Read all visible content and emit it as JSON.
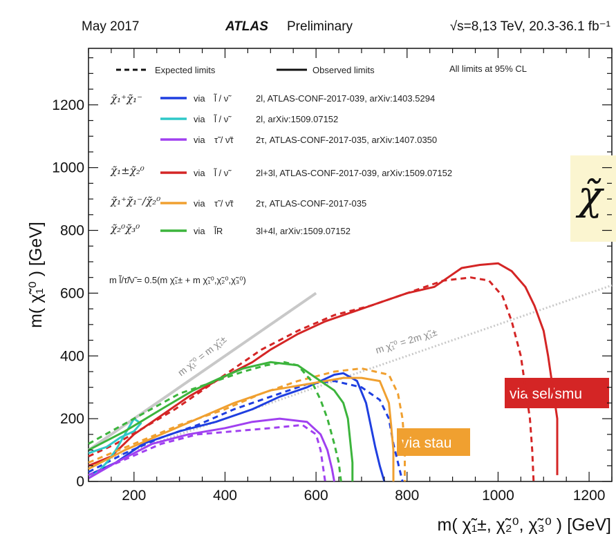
{
  "header": {
    "date": "May 2017",
    "experiment": "ATLAS",
    "status": "Preliminary",
    "energy": "√s=8,13 TeV, 20.3-36.1 fb⁻¹"
  },
  "colors": {
    "blue": "#1f3fe0",
    "cyan": "#2fc8c8",
    "purple": "#a040f0",
    "red": "#d42525",
    "orange": "#f0a030",
    "green": "#3cb43c",
    "diag": "#c8c8c8"
  },
  "legend": {
    "style_expected": "Expected limits",
    "style_observed": "Observed limits",
    "cl_note": "All limits at 95% CL",
    "groups": [
      {
        "label": "χ̃₁⁺χ̃₁⁻"
      },
      {
        "label": "χ̃₁±χ̃₂⁰"
      },
      {
        "label": "χ̃₁⁺χ̃₁⁻/χ̃₂⁰"
      },
      {
        "label": "χ̃₂⁰χ̃₃⁰"
      }
    ],
    "entries": [
      {
        "via": "via",
        "particle": "l̃ / ν̃",
        "text": "2l, ATLAS-CONF-2017-039, arXiv:1403.5294",
        "color": "#1f3fe0"
      },
      {
        "via": "via",
        "particle": "l̃ / ν̃",
        "text": "2l, arXiv:1509.07152",
        "color": "#2fc8c8"
      },
      {
        "via": "via",
        "particle": "τ̃ / ν̃τ",
        "text": "2τ, ATLAS-CONF-2017-035, arXiv:1407.0350",
        "color": "#a040f0"
      },
      {
        "via": "via",
        "particle": "l̃ / ν̃",
        "text": "2l+3l, ATLAS-CONF-2017-039, arXiv:1509.07152",
        "color": "#d42525"
      },
      {
        "via": "via",
        "particle": "τ̃ / ν̃τ",
        "text": "2τ, ATLAS-CONF-2017-035",
        "color": "#f0a030"
      },
      {
        "via": "via",
        "particle": "l̃R",
        "text": "3l+4l, arXiv:1509.07152",
        "color": "#3cb43c"
      }
    ]
  },
  "annotations": {
    "mass_relation": "m l̃/τ̃/ν̃ = 0.5(m χ̃₁± + m χ̃₁⁰,χ̃₂⁰,χ̃₃⁰)",
    "diag1": "m χ̃₁⁰ = m χ̃₁±",
    "diag2": "m χ̃₁⁰ = 2m χ̃₁±",
    "chi_partial": "χ̃",
    "via_selsmu": "via sel/smu",
    "via_stau": "via stau"
  },
  "chart_data": {
    "type": "line",
    "title": "",
    "xlabel": "m( χ̃₁±, χ̃₂⁰, χ̃₃⁰ ) [GeV]",
    "ylabel": "m( χ̃₁⁰ ) [GeV]",
    "xlim": [
      100,
      1250
    ],
    "ylim": [
      0,
      1380
    ],
    "x_ticks": [
      200,
      400,
      600,
      800,
      1000,
      1200
    ],
    "y_ticks": [
      0,
      200,
      400,
      600,
      800,
      1000,
      1200
    ],
    "diagonals": [
      {
        "points": [
          [
            100,
            100
          ],
          [
            600,
            600
          ]
        ]
      },
      {
        "points": [
          [
            100,
            50
          ],
          [
            1250,
            625
          ]
        ]
      }
    ],
    "series": [
      {
        "color": "#d42525",
        "style": "observed",
        "points": [
          [
            100,
            50
          ],
          [
            150,
            80
          ],
          [
            200,
            150
          ],
          [
            260,
            210
          ],
          [
            320,
            270
          ],
          [
            380,
            320
          ],
          [
            420,
            350
          ],
          [
            460,
            380
          ],
          [
            500,
            420
          ],
          [
            560,
            470
          ],
          [
            620,
            510
          ],
          [
            680,
            540
          ],
          [
            740,
            570
          ],
          [
            800,
            600
          ],
          [
            860,
            620
          ],
          [
            890,
            650
          ],
          [
            920,
            680
          ],
          [
            960,
            690
          ],
          [
            1000,
            695
          ],
          [
            1030,
            670
          ],
          [
            1060,
            620
          ],
          [
            1080,
            560
          ],
          [
            1100,
            480
          ],
          [
            1110,
            400
          ],
          [
            1120,
            300
          ],
          [
            1130,
            200
          ],
          [
            1130,
            100
          ],
          [
            1130,
            20
          ]
        ]
      },
      {
        "color": "#d42525",
        "style": "expected",
        "points": [
          [
            100,
            80
          ],
          [
            160,
            120
          ],
          [
            220,
            170
          ],
          [
            290,
            230
          ],
          [
            360,
            300
          ],
          [
            420,
            360
          ],
          [
            480,
            420
          ],
          [
            560,
            480
          ],
          [
            640,
            530
          ],
          [
            720,
            560
          ],
          [
            800,
            600
          ],
          [
            880,
            640
          ],
          [
            940,
            650
          ],
          [
            980,
            640
          ],
          [
            1010,
            590
          ],
          [
            1030,
            510
          ],
          [
            1050,
            400
          ],
          [
            1060,
            300
          ],
          [
            1070,
            200
          ],
          [
            1075,
            100
          ],
          [
            1078,
            0
          ]
        ]
      },
      {
        "color": "#1f3fe0",
        "style": "observed",
        "points": [
          [
            100,
            20
          ],
          [
            160,
            60
          ],
          [
            220,
            120
          ],
          [
            300,
            160
          ],
          [
            380,
            190
          ],
          [
            460,
            230
          ],
          [
            520,
            270
          ],
          [
            580,
            300
          ],
          [
            640,
            340
          ],
          [
            660,
            345
          ],
          [
            690,
            320
          ],
          [
            710,
            250
          ],
          [
            720,
            180
          ],
          [
            730,
            110
          ],
          [
            740,
            50
          ],
          [
            750,
            0
          ]
        ]
      },
      {
        "color": "#1f3fe0",
        "style": "expected",
        "points": [
          [
            100,
            30
          ],
          [
            180,
            90
          ],
          [
            260,
            140
          ],
          [
            340,
            180
          ],
          [
            420,
            230
          ],
          [
            500,
            270
          ],
          [
            580,
            310
          ],
          [
            640,
            320
          ],
          [
            700,
            300
          ],
          [
            740,
            260
          ],
          [
            760,
            200
          ],
          [
            770,
            120
          ],
          [
            780,
            60
          ],
          [
            790,
            0
          ]
        ]
      },
      {
        "color": "#2fc8c8",
        "style": "observed",
        "points": [
          [
            100,
            90
          ],
          [
            140,
            110
          ],
          [
            170,
            140
          ],
          [
            200,
            160
          ],
          [
            215,
            185
          ],
          [
            200,
            200
          ],
          [
            180,
            150
          ],
          [
            160,
            100
          ],
          [
            140,
            60
          ],
          [
            120,
            30
          ],
          [
            100,
            10
          ]
        ]
      },
      {
        "color": "#a040f0",
        "style": "observed",
        "points": [
          [
            100,
            10
          ],
          [
            160,
            60
          ],
          [
            240,
            120
          ],
          [
            320,
            150
          ],
          [
            400,
            170
          ],
          [
            460,
            190
          ],
          [
            520,
            200
          ],
          [
            580,
            190
          ],
          [
            610,
            150
          ],
          [
            625,
            100
          ],
          [
            635,
            40
          ],
          [
            640,
            0
          ]
        ]
      },
      {
        "color": "#a040f0",
        "style": "expected",
        "points": [
          [
            100,
            20
          ],
          [
            180,
            70
          ],
          [
            260,
            120
          ],
          [
            340,
            150
          ],
          [
            420,
            160
          ],
          [
            500,
            170
          ],
          [
            570,
            180
          ],
          [
            600,
            150
          ],
          [
            610,
            100
          ],
          [
            615,
            50
          ],
          [
            620,
            0
          ]
        ]
      },
      {
        "color": "#f0a030",
        "style": "observed",
        "points": [
          [
            100,
            40
          ],
          [
            180,
            100
          ],
          [
            260,
            150
          ],
          [
            340,
            200
          ],
          [
            420,
            250
          ],
          [
            500,
            290
          ],
          [
            580,
            310
          ],
          [
            660,
            330
          ],
          [
            700,
            330
          ],
          [
            740,
            320
          ],
          [
            760,
            250
          ],
          [
            765,
            180
          ],
          [
            770,
            100
          ],
          [
            770,
            0
          ]
        ]
      },
      {
        "color": "#f0a030",
        "style": "expected",
        "points": [
          [
            100,
            60
          ],
          [
            200,
            120
          ],
          [
            300,
            180
          ],
          [
            400,
            230
          ],
          [
            480,
            280
          ],
          [
            560,
            320
          ],
          [
            640,
            350
          ],
          [
            700,
            360
          ],
          [
            760,
            340
          ],
          [
            780,
            280
          ],
          [
            790,
            200
          ],
          [
            795,
            100
          ],
          [
            795,
            0
          ]
        ]
      },
      {
        "color": "#3cb43c",
        "style": "observed",
        "points": [
          [
            100,
            100
          ],
          [
            180,
            160
          ],
          [
            260,
            230
          ],
          [
            330,
            290
          ],
          [
            390,
            330
          ],
          [
            440,
            360
          ],
          [
            500,
            380
          ],
          [
            560,
            370
          ],
          [
            600,
            330
          ],
          [
            640,
            290
          ],
          [
            660,
            250
          ],
          [
            670,
            200
          ],
          [
            675,
            130
          ],
          [
            680,
            60
          ],
          [
            680,
            0
          ]
        ]
      },
      {
        "color": "#3cb43c",
        "style": "expected",
        "points": [
          [
            100,
            120
          ],
          [
            200,
            200
          ],
          [
            300,
            280
          ],
          [
            380,
            320
          ],
          [
            440,
            350
          ],
          [
            490,
            370
          ],
          [
            530,
            380
          ],
          [
            560,
            370
          ],
          [
            590,
            320
          ],
          [
            610,
            260
          ],
          [
            625,
            200
          ],
          [
            640,
            120
          ],
          [
            650,
            60
          ],
          [
            655,
            0
          ]
        ]
      }
    ]
  }
}
